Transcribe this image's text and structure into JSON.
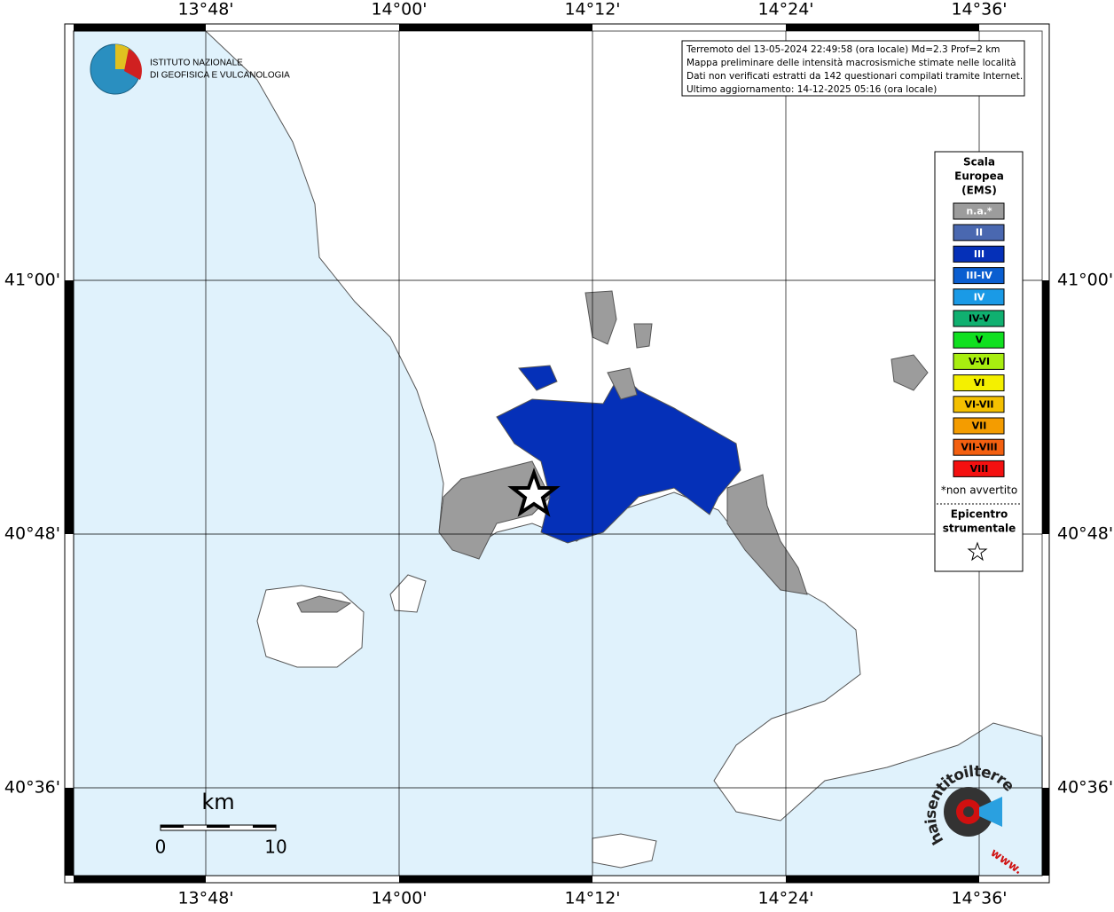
{
  "map": {
    "longitude_labels": [
      "13°48'",
      "14°00'",
      "14°12'",
      "14°24'",
      "14°36'"
    ],
    "latitude_labels": [
      "41°00'",
      "40°48'",
      "40°36'"
    ],
    "logo": {
      "lines": [
        "ISTITUTO NAZIONALE",
        "DI GEOFISICA E VULCANOLOGIA"
      ]
    },
    "info_box": {
      "lines": [
        "Terremoto del 13-05-2024 22:49:58 (ora locale) Md=2.3 Prof=2 km",
        "Mappa preliminare delle intensità macrosismiche stimate nelle località",
        "Dati non verificati estratti da 142 questionari compilati tramite Internet.",
        "Ultimo aggiornamento: 14-12-2025 05:16 (ora locale)"
      ]
    },
    "legend": {
      "title_lines": [
        "Scala",
        "Europea",
        "(EMS)"
      ],
      "items": [
        {
          "label": "n.a.*",
          "color": "#9c9c9c"
        },
        {
          "label": "II",
          "color": "#4a68b0"
        },
        {
          "label": "III",
          "color": "#0530b8"
        },
        {
          "label": "III-IV",
          "color": "#0a5ed0"
        },
        {
          "label": "IV",
          "color": "#1a9ae6"
        },
        {
          "label": "IV-V",
          "color": "#10b070"
        },
        {
          "label": "V",
          "color": "#10e020"
        },
        {
          "label": "V-VI",
          "color": "#a8ee10"
        },
        {
          "label": "VI",
          "color": "#f4f000"
        },
        {
          "label": "VI-VII",
          "color": "#f4c000"
        },
        {
          "label": "VII",
          "color": "#f49c00"
        },
        {
          "label": "VII-VIII",
          "color": "#f46010"
        },
        {
          "label": "VIII",
          "color": "#f41010"
        }
      ],
      "note": "*non avvertito",
      "epicenter_lines": [
        "Epicentro",
        "strumentale"
      ]
    },
    "scale_bar": {
      "unit": "km",
      "labels": [
        "0",
        "10"
      ]
    },
    "site_logo": {
      "text": "haisentitoilterremoto.it",
      "www": "www."
    }
  }
}
